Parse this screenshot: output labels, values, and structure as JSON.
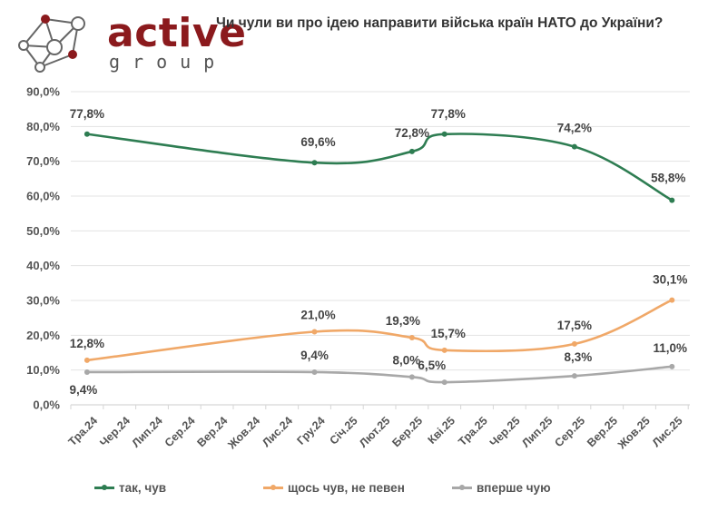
{
  "logo": {
    "word": "active",
    "sub": "group",
    "icon": "network-nodes-icon",
    "brand_color": "#8b1a1d"
  },
  "chart_data": {
    "type": "line",
    "title": "Чи чули ви про ідею направити війська країн НАТО до України?",
    "xlabel": "",
    "ylabel": "",
    "ylim": [
      0,
      90
    ],
    "yticks": [
      0,
      10,
      20,
      30,
      40,
      50,
      60,
      70,
      80,
      90
    ],
    "ytick_labels": [
      "0,0%",
      "10,0%",
      "20,0%",
      "30,0%",
      "40,0%",
      "50,0%",
      "60,0%",
      "70,0%",
      "80,0%",
      "90,0%"
    ],
    "grid": true,
    "legend_position": "bottom",
    "categories": [
      "Тра.24",
      "Чер.24",
      "Лип.24",
      "Сер.24",
      "Вер.24",
      "Жов.24",
      "Лис.24",
      "Гру.24",
      "Січ.25",
      "Лют.25",
      "Бер.25",
      "Кві.25",
      "Тра.25",
      "Чер.25",
      "Лип.25",
      "Сер.25",
      "Вер.25",
      "Жов.25",
      "Лис.25"
    ],
    "series": [
      {
        "name": "так, чув",
        "color": "#2e7d52",
        "points": [
          {
            "x": "Тра.24",
            "y": 77.8,
            "label": "77,8%"
          },
          {
            "x": "Гру.24",
            "y": 69.6,
            "label": "69,6%"
          },
          {
            "x": "Бер.25",
            "y": 72.8,
            "label": "72,8%"
          },
          {
            "x": "Кві.25",
            "y": 77.8,
            "label": "77,8%"
          },
          {
            "x": "Сер.25",
            "y": 74.2,
            "label": "74,2%"
          },
          {
            "x": "Лис.25",
            "y": 58.8,
            "label": "58,8%"
          }
        ]
      },
      {
        "name": "щось чув, не певен",
        "color": "#f0a868",
        "points": [
          {
            "x": "Тра.24",
            "y": 12.8,
            "label": "12,8%"
          },
          {
            "x": "Гру.24",
            "y": 21.0,
            "label": "21,0%"
          },
          {
            "x": "Бер.25",
            "y": 19.3,
            "label": "19,3%"
          },
          {
            "x": "Кві.25",
            "y": 15.7,
            "label": "15,7%"
          },
          {
            "x": "Сер.25",
            "y": 17.5,
            "label": "17,5%"
          },
          {
            "x": "Лис.25",
            "y": 30.1,
            "label": "30,1%"
          }
        ]
      },
      {
        "name": "вперше чую",
        "color": "#a8a8a8",
        "points": [
          {
            "x": "Тра.24",
            "y": 9.4,
            "label": "9,4%"
          },
          {
            "x": "Гру.24",
            "y": 9.4,
            "label": "9,4%"
          },
          {
            "x": "Бер.25",
            "y": 8.0,
            "label": "8,0%"
          },
          {
            "x": "Кві.25",
            "y": 6.5,
            "label": "6,5%"
          },
          {
            "x": "Сер.25",
            "y": 8.3,
            "label": "8,3%"
          },
          {
            "x": "Лис.25",
            "y": 11.0,
            "label": "11,0%"
          }
        ]
      }
    ]
  }
}
